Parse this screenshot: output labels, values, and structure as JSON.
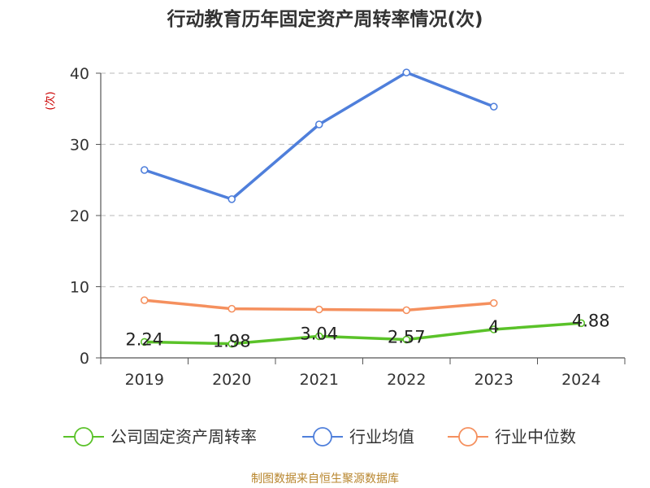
{
  "title": "行动教育历年固定资产周转率情况(次)",
  "source": "制图数据来自恒生聚源数据库",
  "colors": {
    "公司固定资产周转率": "#5ac229",
    "行业均值": "#4f7fdb",
    "行业中位数": "#f5905e",
    "axis_unit": "#cc0000"
  },
  "chart_data": {
    "type": "line",
    "title": "行动教育历年固定资产周转率情况(次)",
    "ylabel": "(次)",
    "ylim": [
      0,
      40
    ],
    "yticks": [
      0,
      10,
      20,
      30,
      40
    ],
    "grid": true,
    "legend_position": "bottom",
    "categories": [
      "2019",
      "2020",
      "2021",
      "2022",
      "2023",
      "2024"
    ],
    "series": [
      {
        "name": "公司固定资产周转率",
        "color": "#5ac229",
        "values": [
          2.24,
          1.98,
          3.04,
          2.57,
          4,
          4.88
        ],
        "labels": [
          "2.24",
          "1.98",
          "3.04",
          "2.57",
          "4",
          "4.88"
        ]
      },
      {
        "name": "行业均值",
        "color": "#4f7fdb",
        "values": [
          26.4,
          22.3,
          32.8,
          40.1,
          35.3,
          null
        ]
      },
      {
        "name": "行业中位数",
        "color": "#f5905e",
        "values": [
          8.1,
          6.9,
          6.8,
          6.7,
          7.7,
          null
        ]
      }
    ]
  }
}
